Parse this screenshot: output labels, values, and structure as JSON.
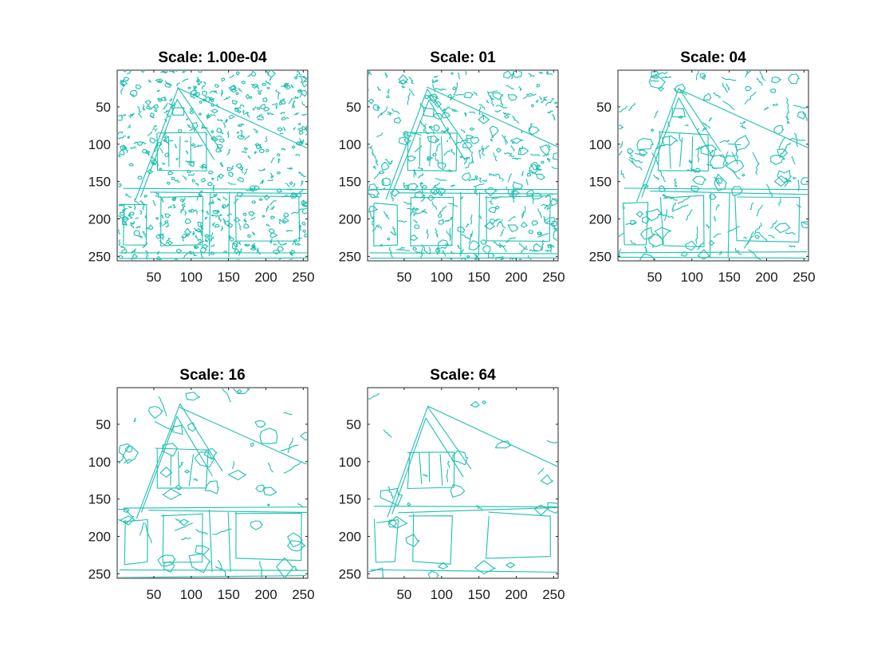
{
  "figure": {
    "background": "#ffffff",
    "edge_color": "#1fbfb0",
    "axis_color": "#262626"
  },
  "chart_data": [
    {
      "type": "contour",
      "title": "Scale: 1.00e-04",
      "xlim": [
        1,
        256
      ],
      "ylim": [
        1,
        256
      ],
      "y_reversed": true,
      "xticks": [
        50,
        100,
        150,
        200,
        250
      ],
      "yticks": [
        50,
        100,
        150,
        200,
        250
      ],
      "edge_density": "very high"
    },
    {
      "type": "contour",
      "title": "Scale: 01",
      "xlim": [
        1,
        256
      ],
      "ylim": [
        1,
        256
      ],
      "y_reversed": true,
      "xticks": [
        50,
        100,
        150,
        200,
        250
      ],
      "yticks": [
        50,
        100,
        150,
        200,
        250
      ],
      "edge_density": "high"
    },
    {
      "type": "contour",
      "title": "Scale: 04",
      "xlim": [
        1,
        256
      ],
      "ylim": [
        1,
        256
      ],
      "y_reversed": true,
      "xticks": [
        50,
        100,
        150,
        200,
        250
      ],
      "yticks": [
        50,
        100,
        150,
        200,
        250
      ],
      "edge_density": "medium"
    },
    {
      "type": "contour",
      "title": "Scale: 16",
      "xlim": [
        1,
        256
      ],
      "ylim": [
        1,
        256
      ],
      "y_reversed": true,
      "xticks": [
        50,
        100,
        150,
        200,
        250
      ],
      "yticks": [
        50,
        100,
        150,
        200,
        250
      ],
      "edge_density": "low"
    },
    {
      "type": "contour",
      "title": "Scale: 64",
      "xlim": [
        1,
        256
      ],
      "ylim": [
        1,
        256
      ],
      "y_reversed": true,
      "xticks": [
        50,
        100,
        150,
        200,
        250
      ],
      "yticks": [
        50,
        100,
        150,
        200,
        250
      ],
      "edge_density": "very low"
    }
  ]
}
